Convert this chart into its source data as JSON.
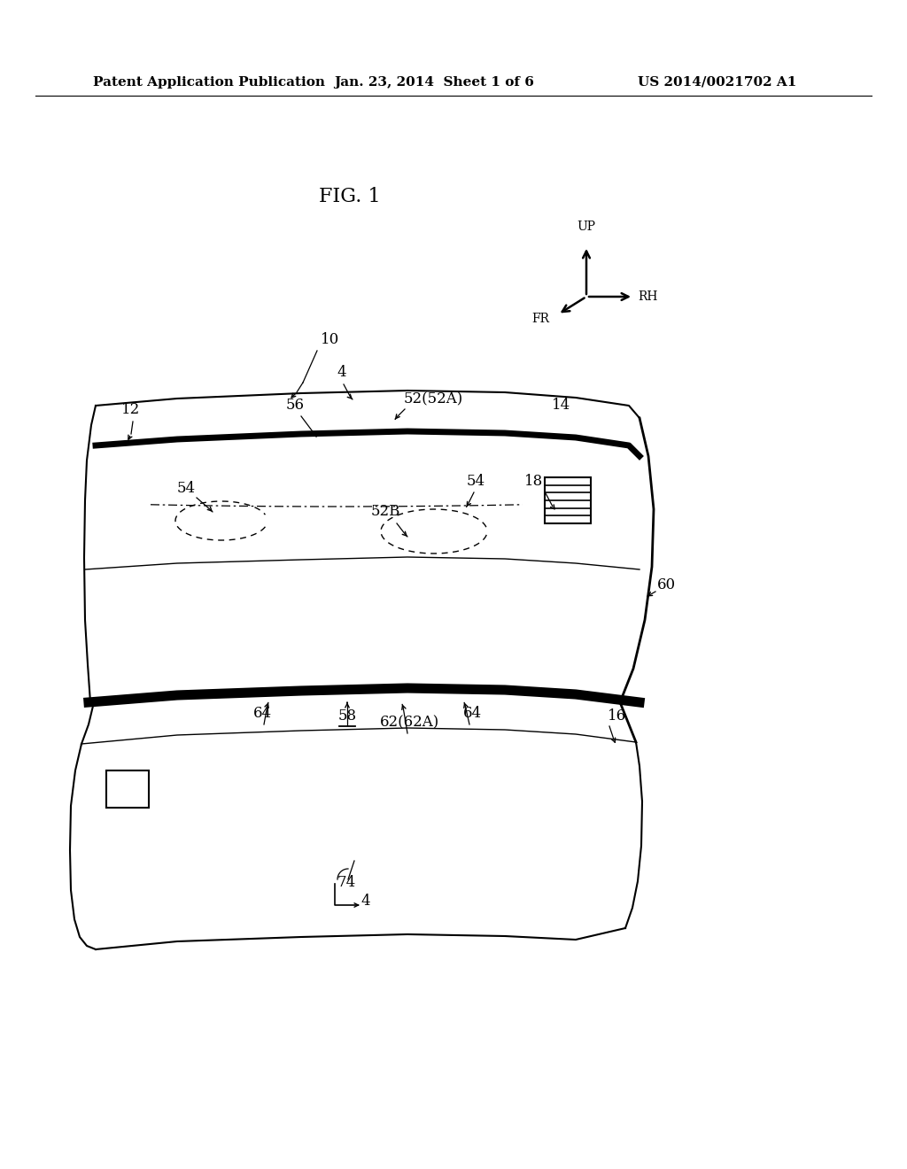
{
  "background_color": "#ffffff",
  "header_left": "Patent Application Publication",
  "header_center": "Jan. 23, 2014  Sheet 1 of 6",
  "header_right": "US 2014/0021702 A1",
  "fig_label": "FIG. 1",
  "header_fontsize": 11,
  "fig_label_fontsize": 16,
  "label_fontsize": 12
}
